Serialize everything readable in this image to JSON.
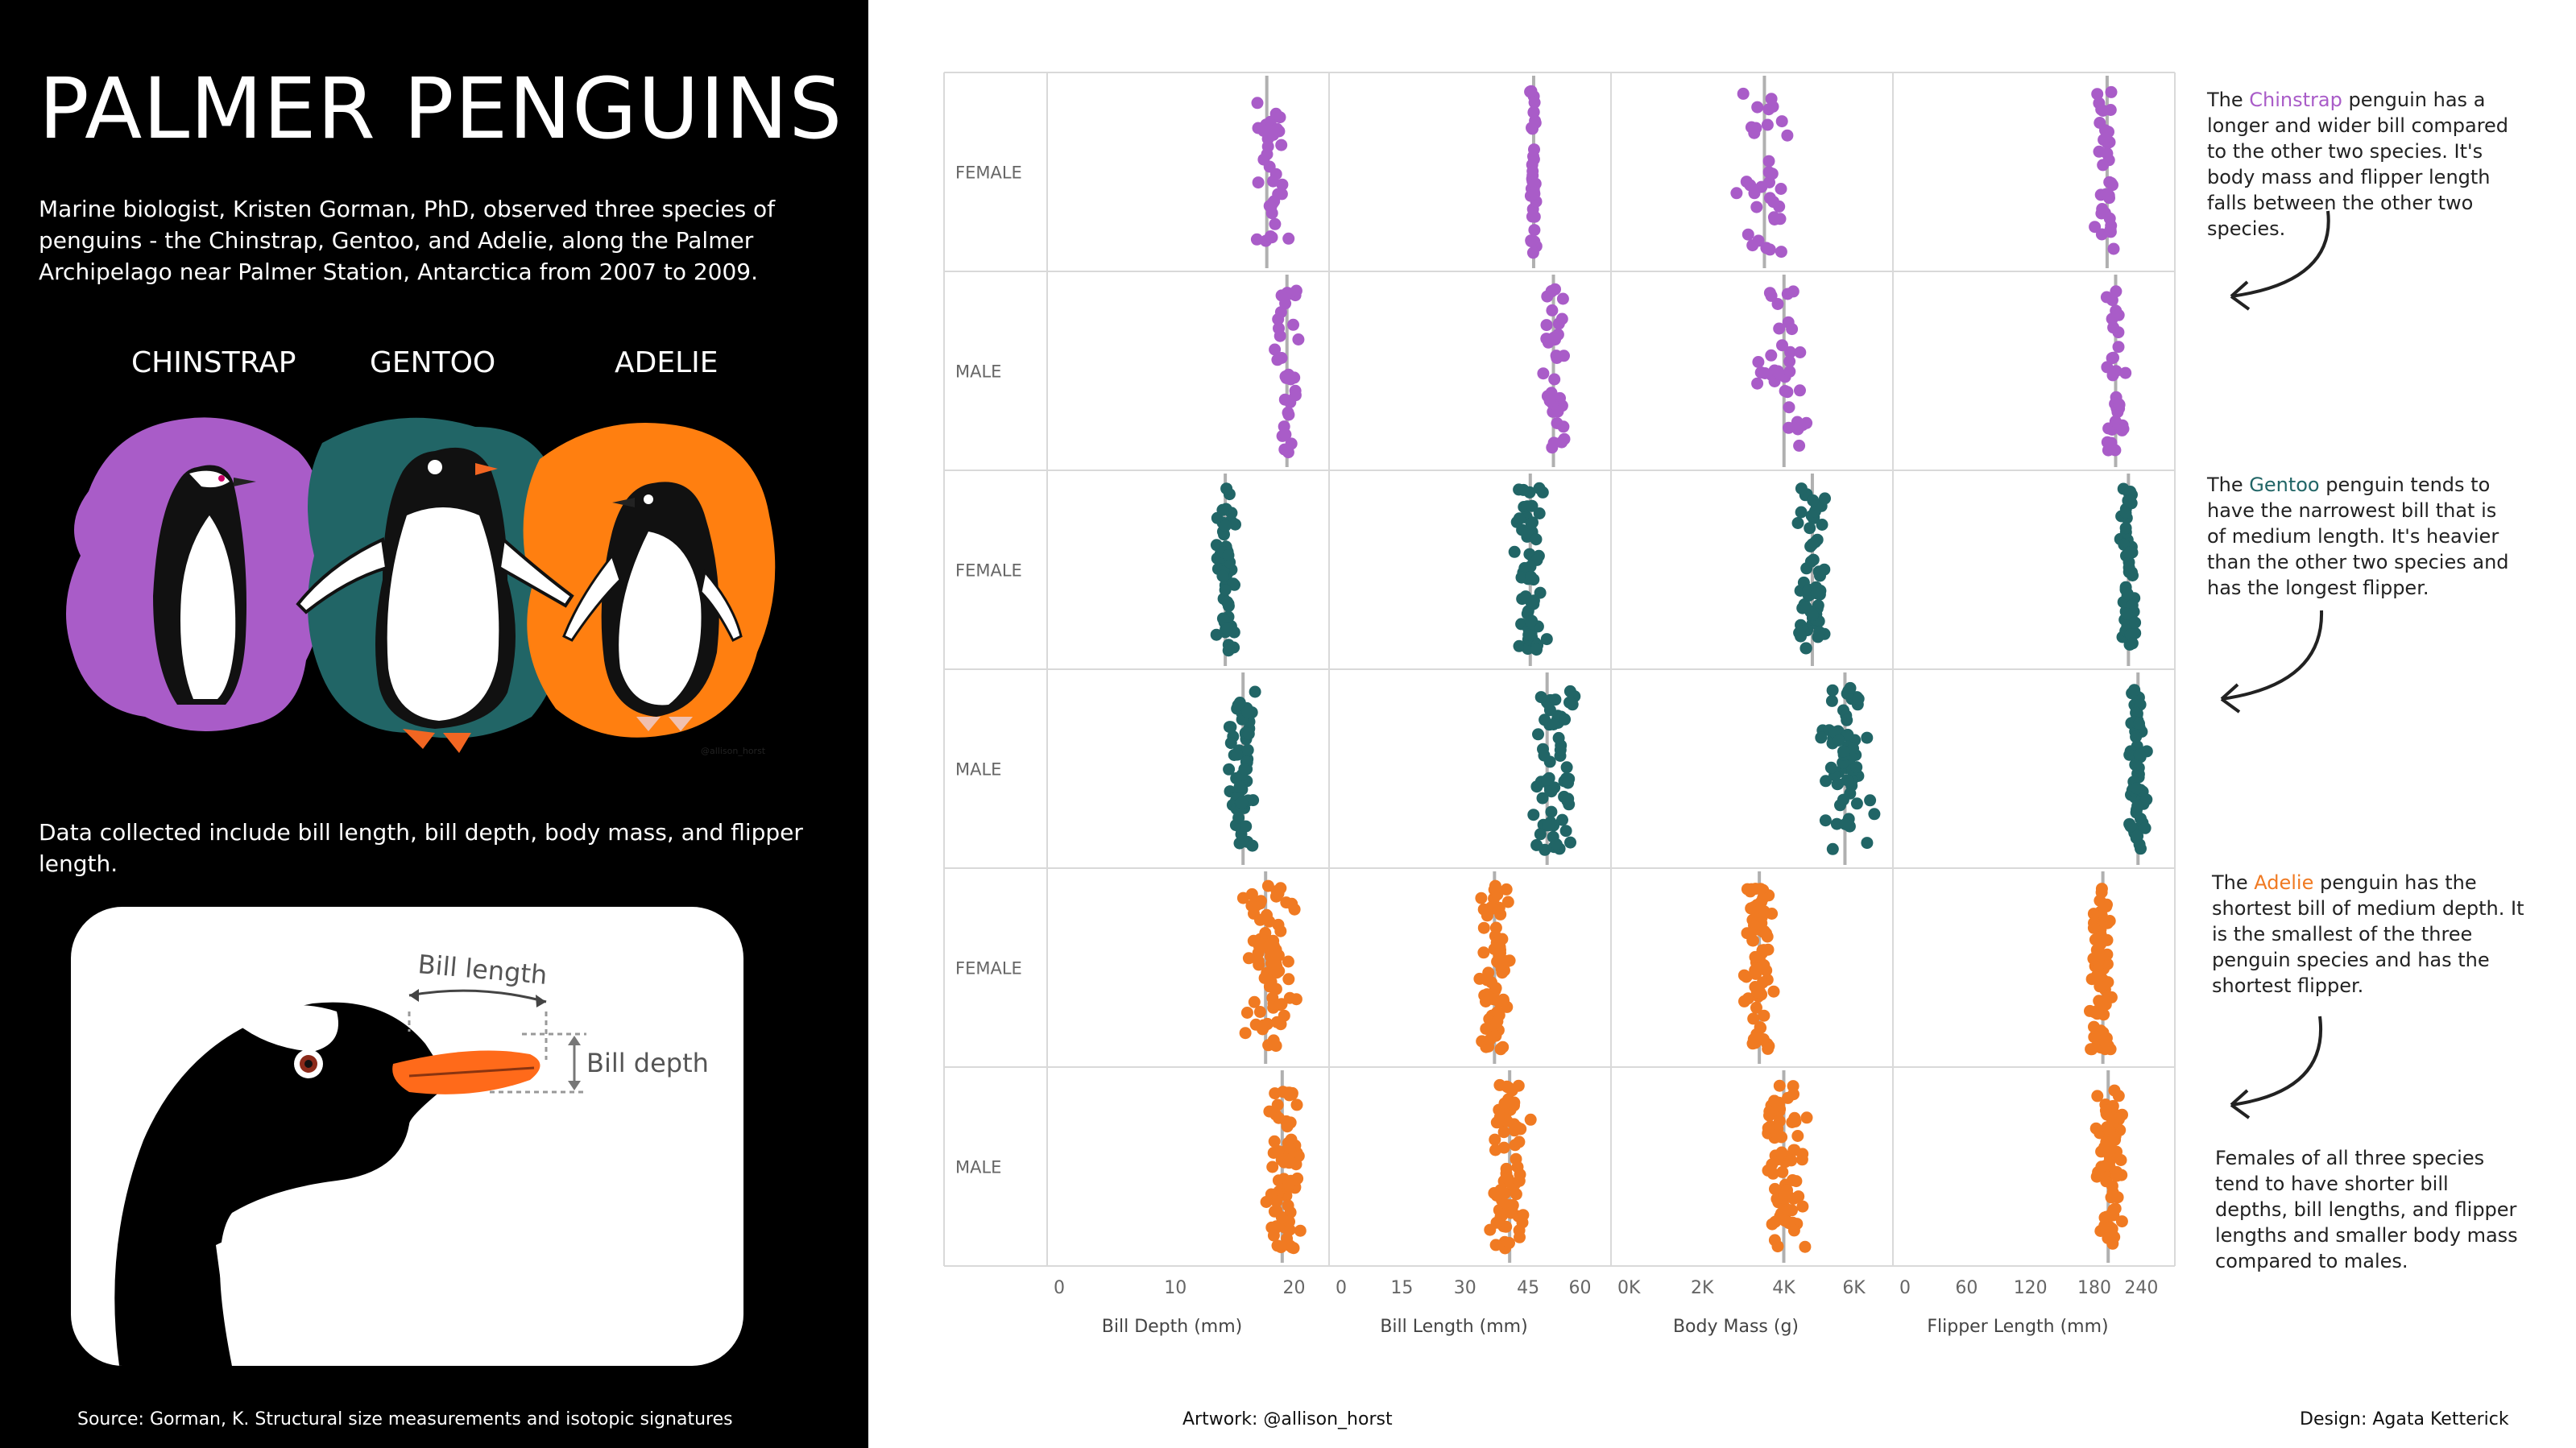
{
  "page": {
    "title": "PALMER PENGUINS",
    "intro": "Marine biologist, Kristen Gorman, PhD, observed three species of penguins - the Chinstrap, Gentoo, and Adelie, along the Palmer Archipelago near Palmer Station, Antarctica from 2007 to 2009.",
    "species_labels": [
      "CHINSTRAP",
      "GENTOO",
      "ADELIE"
    ],
    "collected": "Data collected include bill length, bill depth, body mass, and flipper length.",
    "bill_diagram": {
      "length_label": "Bill length",
      "depth_label": "Bill depth"
    },
    "art_signature": "@allison_horst",
    "source": "Source: Gorman, K. Structural size measurements and isotopic signatures",
    "artwork_credit": "Artwork: @allison_horst",
    "design_credit": "Design: Agata Ketterick"
  },
  "colors": {
    "chinstrap": "#a95cc8",
    "gentoo": "#216566",
    "adelie": "#f07a22",
    "background_left": "#000000",
    "grid": "#d9d9d9",
    "median_line": "#b0b0b0"
  },
  "annotations": [
    {
      "pre": "The ",
      "species": "Chinstrap",
      "color_key": "chinstrap",
      "post": " penguin has a longer and wider bill compared to the other two species. It's body mass and flipper length falls between the other two species."
    },
    {
      "pre": "The ",
      "species": "Gentoo",
      "color_key": "gentoo",
      "post": " penguin tends to have the narrowest bill that is of medium length. It's heavier than the other two species and has the longest flipper."
    },
    {
      "pre": "The ",
      "species": "Adelie",
      "color_key": "adelie",
      "post": " penguin has the shortest bill of medium depth. It is the smallest of the three penguin species and has the shortest flipper."
    },
    {
      "pre": "",
      "species": "",
      "color_key": "",
      "post": "Females of all three species tend to have shorter bill depths, bill lengths, and flipper lengths and smaller body mass compared to males."
    }
  ],
  "chart_data": {
    "type": "scatter",
    "subtype": "jittered strip plot with median lines",
    "rows": [
      {
        "label": "FEMALE",
        "species": "chinstrap",
        "sex": "female",
        "medians": [
          17.7,
          46.3,
          3525,
          192
        ],
        "n": 34
      },
      {
        "label": "MALE",
        "species": "chinstrap",
        "sex": "male",
        "medians": [
          19.4,
          51.0,
          4005,
          200
        ],
        "n": 34
      },
      {
        "label": "FEMALE",
        "species": "gentoo",
        "sex": "female",
        "medians": [
          14.2,
          45.5,
          4700,
          212
        ],
        "n": 58
      },
      {
        "label": "MALE",
        "species": "gentoo",
        "sex": "male",
        "medians": [
          15.7,
          49.5,
          5500,
          221
        ],
        "n": 61
      },
      {
        "label": "FEMALE",
        "species": "adelie",
        "sex": "female",
        "medians": [
          17.6,
          37.0,
          3400,
          188
        ],
        "n": 73
      },
      {
        "label": "MALE",
        "species": "adelie",
        "sex": "male",
        "medians": [
          19.0,
          40.6,
          4000,
          193
        ],
        "n": 73
      }
    ],
    "ranges": [
      [
        [
          16.4,
          20.3
        ],
        [
          45.2,
          47.0
        ],
        [
          2700,
          4150
        ],
        [
          178,
          202
        ]
      ],
      [
        [
          17.5,
          20.8
        ],
        [
          48.5,
          55.8
        ],
        [
          3250,
          4800
        ],
        [
          187,
          212
        ]
      ],
      [
        [
          13.1,
          15.5
        ],
        [
          40.9,
          50.5
        ],
        [
          3950,
          5200
        ],
        [
          203,
          222
        ]
      ],
      [
        [
          14.1,
          17.3
        ],
        [
          44.4,
          59.6
        ],
        [
          4750,
          6300
        ],
        [
          208,
          231
        ]
      ],
      [
        [
          15.5,
          21.5
        ],
        [
          32.1,
          42.2
        ],
        [
          2850,
          3900
        ],
        [
          172,
          202
        ]
      ],
      [
        [
          17.0,
          21.5
        ],
        [
          34.6,
          46.0
        ],
        [
          3325,
          4775
        ],
        [
          178,
          210
        ]
      ]
    ],
    "columns": [
      {
        "xlabel": "Bill Depth (mm)",
        "ticks": [
          0,
          10,
          20
        ],
        "tick_labels": [
          "0",
          "10",
          "20"
        ],
        "xlim": [
          0,
          22
        ]
      },
      {
        "xlabel": "Bill Length (mm)",
        "ticks": [
          0,
          15,
          30,
          45,
          60
        ],
        "tick_labels": [
          "0",
          "15",
          "30",
          "45",
          "60"
        ],
        "xlim": [
          0,
          62
        ]
      },
      {
        "xlabel": "Body Mass (g)",
        "ticks": [
          0,
          2000,
          4000,
          6000
        ],
        "tick_labels": [
          "0K",
          "2K",
          "4K",
          "6K"
        ],
        "xlim": [
          0,
          6400
        ]
      },
      {
        "xlabel": "Flipper Length (mm)",
        "ticks": [
          0,
          60,
          120,
          180,
          240
        ],
        "tick_labels": [
          "0",
          "60",
          "120",
          "180",
          "240"
        ],
        "xlim": [
          0,
          245
        ]
      }
    ],
    "grid": true,
    "legend": "none"
  }
}
